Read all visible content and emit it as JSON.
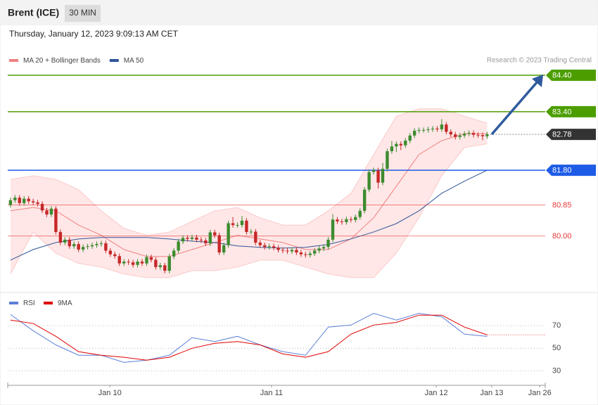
{
  "header": {
    "title": "Brent (ICE)",
    "interval": "30 MIN",
    "timestamp": "Thursday, January 12, 2023 9:09:13 AM CET",
    "credit": "Research © 2023 Trading Central"
  },
  "chart_data": [
    {
      "type": "candlestick",
      "up_color": "#3d8b2f",
      "down_color": "#c62828",
      "ylim": [
        78.57,
        84.63
      ],
      "xlim": [
        -0.6,
        117.8
      ],
      "xticks": [
        {
          "value": 21.9,
          "label": "Jan 10"
        },
        {
          "value": 57.5,
          "label": "Jan 11"
        },
        {
          "value": 93.8,
          "label": "Jan 12"
        },
        {
          "value": 106,
          "label": "Jan 13"
        },
        {
          "value": 116.6,
          "label": "Jan 26"
        }
      ],
      "ohlc": [
        [
          80.85,
          81.05,
          80.78,
          80.98
        ],
        [
          80.98,
          81.12,
          80.91,
          81.05
        ],
        [
          81.05,
          81.12,
          80.83,
          80.9
        ],
        [
          80.9,
          81.09,
          80.83,
          81.02
        ],
        [
          81.02,
          81.09,
          80.88,
          80.95
        ],
        [
          80.95,
          81.02,
          80.85,
          80.92
        ],
        [
          80.92,
          80.99,
          80.81,
          80.88
        ],
        [
          80.88,
          80.95,
          80.63,
          80.7
        ],
        [
          80.7,
          80.77,
          80.52,
          80.59
        ],
        [
          80.59,
          80.82,
          80.52,
          80.75
        ],
        [
          80.75,
          80.82,
          80.04,
          80.11
        ],
        [
          80.11,
          80.18,
          79.75,
          79.82
        ],
        [
          79.82,
          79.97,
          79.75,
          79.9
        ],
        [
          79.9,
          79.97,
          79.65,
          79.72
        ],
        [
          79.72,
          79.85,
          79.65,
          79.78
        ],
        [
          79.78,
          79.85,
          79.56,
          79.63
        ],
        [
          79.63,
          79.77,
          79.56,
          79.7
        ],
        [
          79.7,
          79.79,
          79.63,
          79.72
        ],
        [
          79.72,
          79.82,
          79.65,
          79.75
        ],
        [
          79.75,
          79.85,
          79.68,
          79.78
        ],
        [
          79.78,
          79.87,
          79.71,
          79.8
        ],
        [
          79.8,
          79.87,
          79.53,
          79.6
        ],
        [
          79.6,
          79.67,
          79.43,
          79.5
        ],
        [
          79.5,
          79.57,
          79.38,
          79.45
        ],
        [
          79.45,
          79.52,
          79.18,
          79.25
        ],
        [
          79.25,
          79.37,
          79.18,
          79.3
        ],
        [
          79.3,
          79.37,
          79.21,
          79.28
        ],
        [
          79.28,
          79.35,
          79.14,
          79.21
        ],
        [
          79.21,
          79.37,
          79.14,
          79.3
        ],
        [
          79.3,
          79.37,
          79.18,
          79.25
        ],
        [
          79.25,
          79.49,
          79.18,
          79.42
        ],
        [
          79.42,
          79.49,
          79.28,
          79.35
        ],
        [
          79.35,
          79.42,
          79.08,
          79.15
        ],
        [
          79.15,
          79.27,
          79.08,
          79.2
        ],
        [
          79.2,
          79.27,
          78.98,
          79.05
        ],
        [
          79.05,
          79.51,
          78.98,
          79.44
        ],
        [
          79.44,
          79.67,
          79.37,
          79.6
        ],
        [
          79.6,
          79.92,
          79.53,
          79.85
        ],
        [
          79.85,
          80.02,
          79.78,
          79.95
        ],
        [
          79.95,
          80.02,
          79.85,
          79.92
        ],
        [
          79.92,
          80.03,
          79.85,
          79.96
        ],
        [
          79.96,
          80.03,
          79.83,
          79.9
        ],
        [
          79.9,
          79.97,
          79.81,
          79.88
        ],
        [
          79.88,
          79.95,
          79.73,
          79.8
        ],
        [
          79.8,
          80.17,
          79.73,
          80.1
        ],
        [
          80.1,
          80.17,
          79.95,
          80.02
        ],
        [
          80.02,
          80.09,
          79.48,
          79.55
        ],
        [
          79.55,
          79.82,
          79.48,
          79.75
        ],
        [
          79.75,
          80.42,
          79.68,
          80.35
        ],
        [
          80.35,
          80.52,
          80.23,
          80.3
        ],
        [
          80.3,
          80.37,
          80.23,
          80.3
        ],
        [
          80.3,
          80.55,
          80.23,
          80.42
        ],
        [
          80.42,
          80.49,
          80.04,
          80.11
        ],
        [
          80.11,
          80.19,
          80.04,
          80.12
        ],
        [
          80.12,
          80.19,
          79.75,
          79.82
        ],
        [
          79.82,
          79.89,
          79.68,
          79.75
        ],
        [
          79.75,
          79.82,
          79.63,
          79.7
        ],
        [
          79.7,
          79.79,
          79.63,
          79.72
        ],
        [
          79.72,
          79.79,
          79.61,
          79.68
        ],
        [
          79.68,
          79.75,
          79.55,
          79.62
        ],
        [
          79.62,
          79.69,
          79.53,
          79.6
        ],
        [
          79.6,
          79.67,
          79.51,
          79.58
        ],
        [
          79.58,
          79.69,
          79.51,
          79.62
        ],
        [
          79.62,
          79.69,
          79.48,
          79.55
        ],
        [
          79.55,
          79.62,
          79.43,
          79.5
        ],
        [
          79.5,
          79.57,
          79.41,
          79.48
        ],
        [
          79.48,
          79.59,
          79.41,
          79.52
        ],
        [
          79.52,
          79.67,
          79.45,
          79.6
        ],
        [
          79.6,
          79.73,
          79.53,
          79.66
        ],
        [
          79.66,
          79.77,
          79.59,
          79.7
        ],
        [
          79.7,
          79.97,
          79.63,
          79.9
        ],
        [
          79.9,
          80.6,
          79.83,
          80.45
        ],
        [
          80.45,
          80.52,
          80.33,
          80.4
        ],
        [
          80.4,
          80.47,
          80.31,
          80.38
        ],
        [
          80.38,
          80.53,
          80.31,
          80.46
        ],
        [
          80.46,
          80.53,
          80.37,
          80.44
        ],
        [
          80.44,
          80.59,
          80.37,
          80.52
        ],
        [
          80.52,
          80.76,
          80.45,
          80.69
        ],
        [
          80.69,
          81.34,
          80.62,
          81.27
        ],
        [
          81.27,
          81.82,
          81.2,
          81.75
        ],
        [
          81.75,
          81.87,
          81.68,
          81.8
        ],
        [
          81.8,
          81.87,
          81.3,
          81.46
        ],
        [
          81.46,
          82.0,
          81.39,
          81.84
        ],
        [
          81.84,
          82.39,
          81.77,
          82.32
        ],
        [
          82.32,
          82.6,
          82.25,
          82.45
        ],
        [
          82.45,
          82.59,
          82.3,
          82.52
        ],
        [
          82.52,
          82.59,
          82.35,
          82.48
        ],
        [
          82.48,
          82.68,
          82.41,
          82.61
        ],
        [
          82.61,
          82.82,
          82.54,
          82.75
        ],
        [
          82.75,
          82.95,
          82.68,
          82.88
        ],
        [
          82.88,
          82.97,
          82.81,
          82.9
        ],
        [
          82.9,
          82.97,
          82.83,
          82.9
        ],
        [
          82.9,
          82.99,
          82.83,
          82.92
        ],
        [
          82.92,
          83.01,
          82.85,
          82.94
        ],
        [
          82.94,
          83.01,
          82.85,
          82.92
        ],
        [
          82.92,
          83.2,
          82.85,
          83.05
        ],
        [
          83.05,
          83.12,
          82.78,
          82.85
        ],
        [
          82.85,
          82.92,
          82.71,
          82.78
        ],
        [
          82.78,
          82.85,
          82.64,
          82.71
        ],
        [
          82.71,
          82.82,
          82.64,
          82.75
        ],
        [
          82.75,
          82.87,
          82.68,
          82.8
        ],
        [
          82.8,
          82.89,
          82.73,
          82.82
        ],
        [
          82.82,
          82.89,
          82.7,
          82.77
        ],
        [
          82.77,
          82.84,
          82.69,
          82.76
        ],
        [
          82.76,
          82.83,
          82.62,
          82.73
        ],
        [
          82.73,
          82.85,
          82.66,
          82.78
        ]
      ],
      "indicator_x": [
        0,
        5,
        10,
        15,
        20,
        25,
        30,
        35,
        40,
        45,
        50,
        55,
        60,
        65,
        70,
        75,
        80,
        85,
        90,
        95,
        100,
        105
      ],
      "series": [
        {
          "name": "MA 20 + Bollinger Bands",
          "color": "#f08080",
          "values": [
            80.69,
            80.78,
            80.69,
            80.3,
            80.02,
            79.63,
            79.44,
            79.44,
            79.63,
            79.82,
            80.02,
            79.92,
            79.82,
            79.63,
            79.63,
            79.92,
            80.5,
            81.36,
            82.23,
            82.61,
            82.8,
            82.8
          ],
          "upper": [
            81.55,
            81.65,
            81.55,
            81.27,
            80.69,
            80.21,
            80.02,
            80.11,
            80.4,
            80.69,
            80.78,
            80.5,
            80.3,
            80.3,
            80.69,
            81.17,
            82.23,
            83.28,
            83.48,
            83.48,
            83.28,
            83.09
          ],
          "lower": [
            78.96,
            80.11,
            79.53,
            79.25,
            79.15,
            78.96,
            78.86,
            78.86,
            79.05,
            79.05,
            79.15,
            79.34,
            79.34,
            79.15,
            78.96,
            78.86,
            78.86,
            79.53,
            80.5,
            81.65,
            82.42,
            82.52
          ]
        },
        {
          "name": "MA 50",
          "color": "#2f5597",
          "values": [
            79.34,
            79.63,
            79.82,
            79.92,
            79.96,
            79.96,
            79.96,
            79.92,
            79.86,
            79.82,
            79.73,
            79.69,
            79.67,
            79.69,
            79.77,
            79.92,
            80.11,
            80.34,
            80.69,
            81.17,
            81.5,
            81.8
          ]
        }
      ],
      "levels": [
        {
          "value": 84.4,
          "label": "84.40",
          "color": "#4c9e00",
          "boxed": true
        },
        {
          "value": 83.4,
          "label": "83.40",
          "color": "#4c9e00",
          "boxed": true
        },
        {
          "value": 82.78,
          "label": "82.78",
          "color": "#333333",
          "boxed": true,
          "dotted": true
        },
        {
          "value": 81.8,
          "label": "81.80",
          "color": "#1e5be6",
          "boxed": true
        },
        {
          "value": 80.85,
          "label": "80.85",
          "color": "#e53935",
          "boxed": false
        },
        {
          "value": 80.0,
          "label": "80.00",
          "color": "#e53935",
          "boxed": false
        }
      ]
    },
    {
      "type": "line",
      "ylim": [
        19,
        97
      ],
      "yticks": [
        70,
        50,
        30
      ],
      "grid": true,
      "x": [
        0,
        5,
        10,
        15,
        20,
        25,
        30,
        35,
        40,
        45,
        50,
        55,
        60,
        65,
        70,
        75,
        80,
        85,
        90,
        95,
        100,
        105
      ],
      "series": [
        {
          "name": "RSI",
          "color": "#5b7fd6",
          "values": [
            80,
            65.6,
            53,
            43.8,
            43.8,
            37.5,
            39.4,
            43.8,
            59.4,
            56,
            60.6,
            53,
            47,
            43.8,
            68.8,
            70.6,
            81,
            75,
            81,
            78,
            62.5,
            60.6
          ]
        },
        {
          "name": "9MA",
          "color": "#e00000",
          "values": [
            75,
            72,
            60.6,
            47,
            43.8,
            42,
            39.4,
            42,
            50,
            54.4,
            56,
            53,
            45,
            42,
            47,
            62.5,
            70.6,
            73,
            79.4,
            79.4,
            68.8,
            61.9
          ]
        }
      ]
    }
  ]
}
